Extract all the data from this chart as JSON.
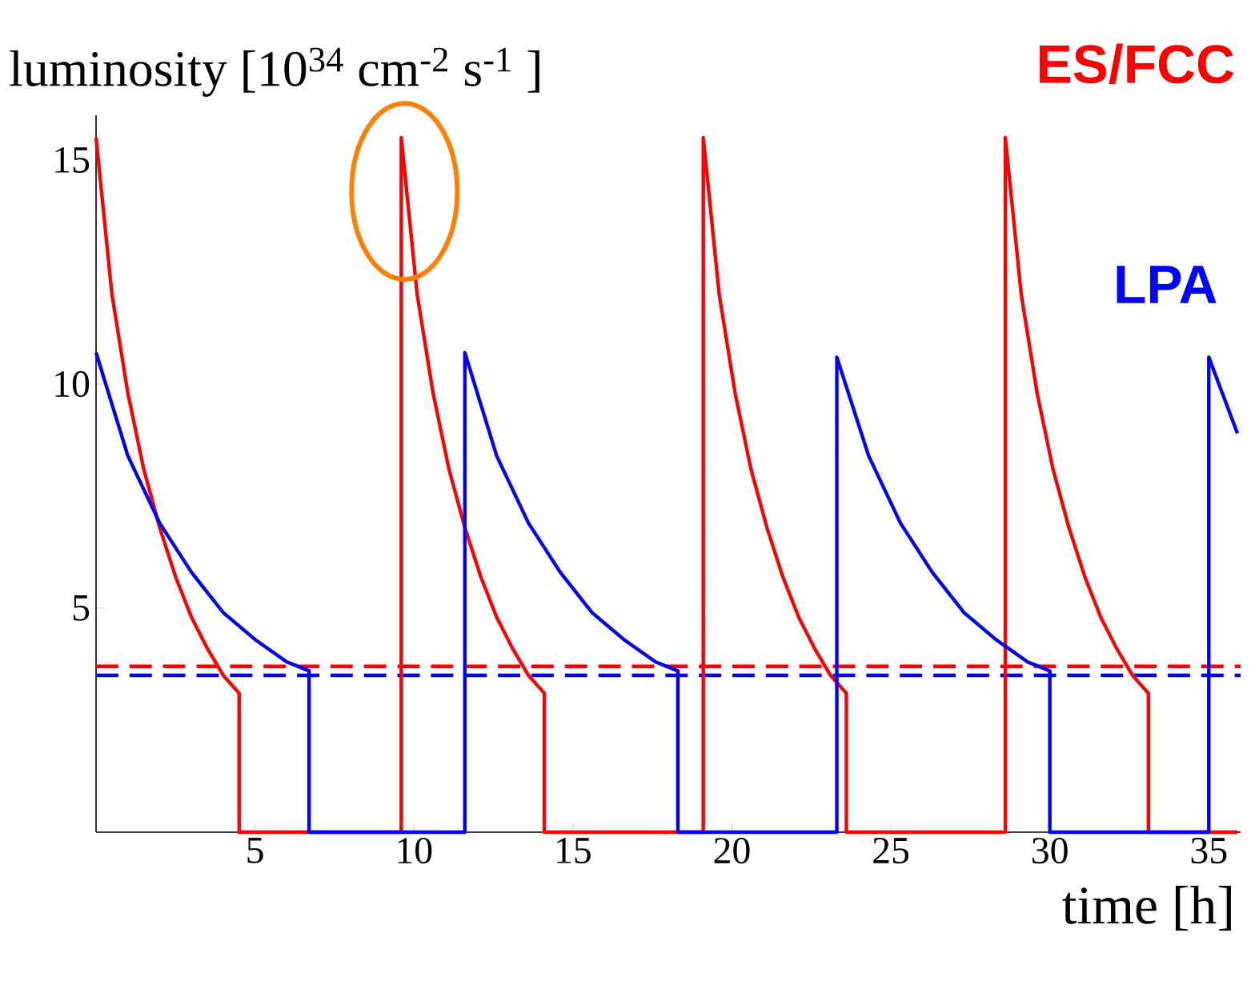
{
  "chart_data": {
    "type": "line",
    "xlabel": "time [h]",
    "ylabel": "luminosity [10$^{34}$ cm$^{-2}$ s$^{-1}$ ]",
    "xlim": [
      0,
      36
    ],
    "ylim": [
      0,
      16
    ],
    "xticks": [
      5,
      10,
      15,
      20,
      25,
      30,
      35
    ],
    "yticks": [
      5,
      10,
      15
    ],
    "grid": false,
    "legend": false,
    "marker": "none",
    "line_style": "solid",
    "series": [
      {
        "name": "ES/FCC",
        "color": "#ff0000",
        "x": [
          0,
          0.5,
          1,
          1.5,
          2,
          2.5,
          3,
          3.5,
          4,
          4.5,
          4.5,
          9.6,
          9.6,
          10.1,
          10.6,
          11.1,
          11.6,
          12.1,
          12.6,
          13.1,
          13.6,
          14.1,
          14.1,
          19.1,
          19.1,
          19.6,
          20.1,
          20.6,
          21.1,
          21.6,
          22.1,
          22.6,
          23.1,
          23.6,
          23.6,
          28.6,
          28.6,
          29.1,
          29.6,
          30.1,
          30.6,
          31.1,
          31.6,
          32.1,
          32.6,
          33.1,
          33.1,
          35.9
        ],
        "values": [
          15.5,
          12,
          9.8,
          8.1,
          6.8,
          5.7,
          4.8,
          4.1,
          3.5,
          3.1,
          0,
          0,
          15.5,
          12,
          9.8,
          8.1,
          6.8,
          5.7,
          4.8,
          4.1,
          3.5,
          3.1,
          0,
          0,
          15.5,
          12,
          9.8,
          8.1,
          6.8,
          5.7,
          4.8,
          4.1,
          3.5,
          3.1,
          0,
          0,
          15.5,
          12,
          9.8,
          8.1,
          6.8,
          5.7,
          4.8,
          4.1,
          3.5,
          3.1,
          0,
          0
        ]
      },
      {
        "name": "LPA",
        "color": "#0000ff",
        "x": [
          0,
          1,
          2,
          3,
          4,
          5,
          6,
          6.7,
          6.7,
          11.6,
          11.6,
          12.6,
          13.6,
          14.6,
          15.6,
          16.6,
          17.6,
          18.3,
          18.3,
          23.3,
          23.3,
          24.3,
          25.3,
          26.3,
          27.3,
          28.3,
          29.3,
          30,
          30,
          35,
          35,
          35.9
        ],
        "values": [
          10.7,
          8.4,
          6.9,
          5.8,
          4.9,
          4.3,
          3.8,
          3.6,
          0,
          0,
          10.7,
          8.4,
          6.9,
          5.8,
          4.9,
          4.3,
          3.8,
          3.6,
          0,
          0,
          10.6,
          8.4,
          6.9,
          5.8,
          4.9,
          4.3,
          3.8,
          3.6,
          0,
          0,
          10.6,
          8.9
        ]
      }
    ],
    "ref_lines": [
      {
        "axis": "y",
        "value": 3.7,
        "color": "#ff0000",
        "line_style": "dashed"
      },
      {
        "axis": "y",
        "value": 3.5,
        "color": "#0000ff",
        "line_style": "dashed"
      }
    ]
  }
}
